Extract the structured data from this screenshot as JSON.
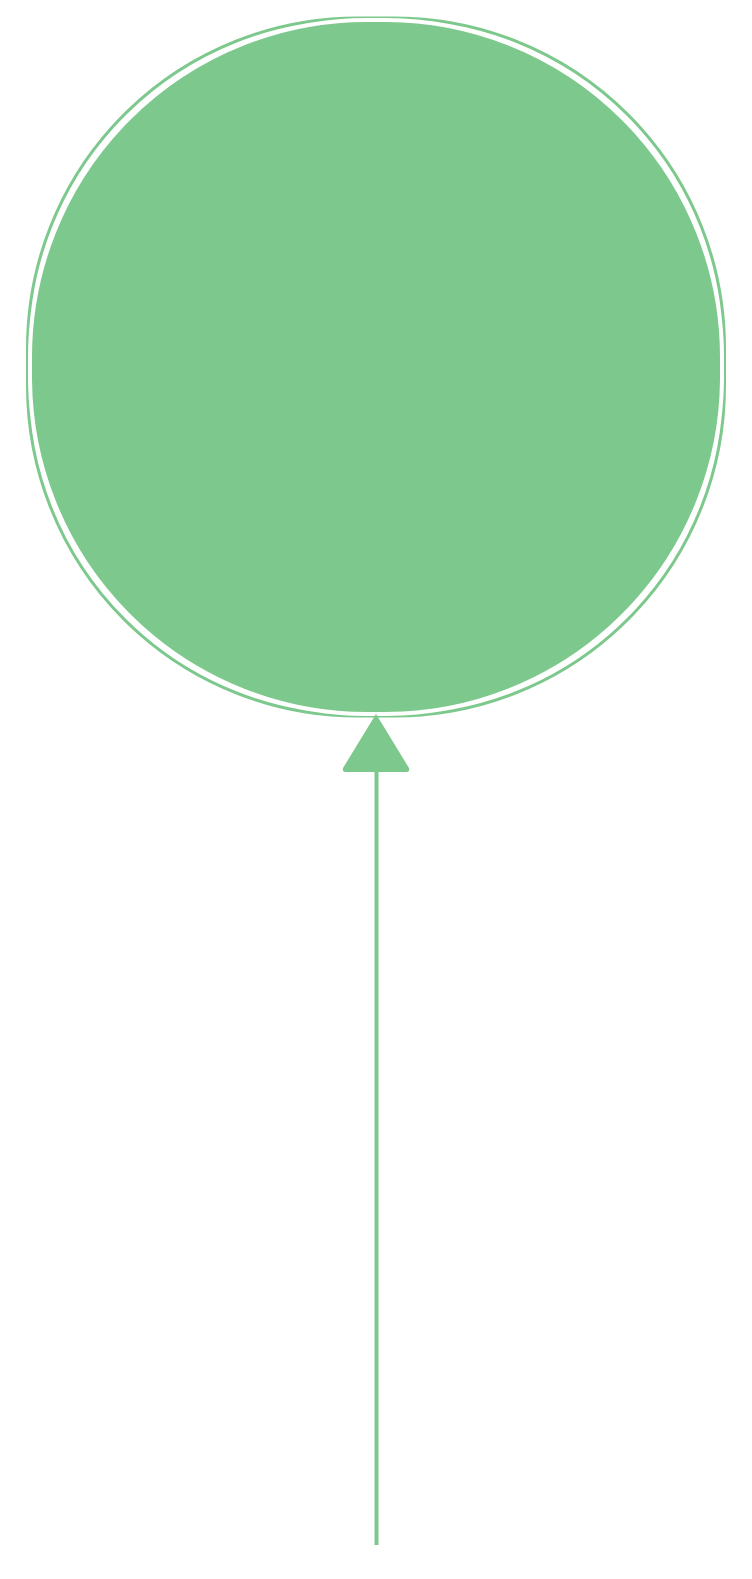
{
  "balloon": {
    "color": "#7dc88c",
    "background": "#ffffff"
  }
}
